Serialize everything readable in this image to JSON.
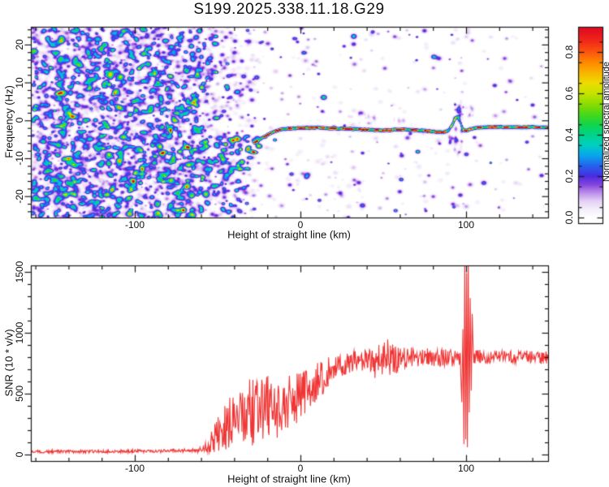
{
  "title": "S199.2025.338.11.18.G29",
  "chart_data": [
    {
      "type": "heatmap",
      "title": "S199.2025.338.11.18.G29",
      "xlabel": "Height of straight line (km)",
      "ylabel": "Frequency (Hz)",
      "x_range": [
        -163.2,
        149.5
      ],
      "y_range": [
        -25.6,
        24.7
      ],
      "x_major_ticks": [
        -100,
        0,
        100
      ],
      "x_tick_labels": [
        "-100",
        "0",
        "100"
      ],
      "x_minor_step": 20,
      "y_major_ticks": [
        20,
        10,
        0,
        -10,
        -20
      ],
      "y_tick_labels": [
        "20",
        "10",
        "0",
        "-10",
        "-20"
      ],
      "y_minor_step": 2,
      "description": "Doppler spectrogram: broadband violet speckle noise below -60 km, diagonal chirp streaks between -100 and -25 km converging onto a narrow carrier line near -2 Hz that runs to 150 km, with a vertical disturbance near 95-100 km.",
      "colorbar": {
        "label": "Normalized spectral amplitude",
        "ticks": [
          0.0,
          0.2,
          0.4,
          0.6,
          0.8
        ],
        "tick_labels": [
          "0.0",
          "0.2",
          "0.4",
          "0.6",
          "0.8"
        ],
        "minor_step": 0.05,
        "vmin": 0.0,
        "vmax": 0.92,
        "stops": [
          [
            0.0,
            "#ffffff"
          ],
          [
            0.04,
            "#f5eefb"
          ],
          [
            0.08,
            "#e3d0f5"
          ],
          [
            0.12,
            "#bc8cec"
          ],
          [
            0.16,
            "#8444de"
          ],
          [
            0.2,
            "#4a2ce2"
          ],
          [
            0.25,
            "#2562ec"
          ],
          [
            0.3,
            "#09a6ec"
          ],
          [
            0.35,
            "#00cfc2"
          ],
          [
            0.4,
            "#00d489"
          ],
          [
            0.45,
            "#12d44a"
          ],
          [
            0.5,
            "#4ad818"
          ],
          [
            0.55,
            "#8edc00"
          ],
          [
            0.6,
            "#c6e400"
          ],
          [
            0.65,
            "#eedc00"
          ],
          [
            0.7,
            "#f9b400"
          ],
          [
            0.75,
            "#ff8800"
          ],
          [
            0.8,
            "#fb5510"
          ],
          [
            0.85,
            "#f32a18"
          ],
          [
            0.9,
            "#e41020"
          ],
          [
            1.0,
            "#d00430"
          ]
        ]
      },
      "render": {
        "seed": 1337,
        "noise_attempts": 11000,
        "noise_density": [
          [
            -163,
            0.92
          ],
          [
            -78,
            0.92
          ],
          [
            -45,
            0.35
          ],
          [
            -20,
            0.06
          ],
          [
            150,
            0.035
          ]
        ],
        "streaks": [
          [
            -85,
            -9,
            -28,
            -4.5,
            30,
            0.15,
            0.34,
            0.28
          ],
          [
            -74,
            -13,
            -30,
            -7,
            20,
            0.13,
            0.3,
            0.22
          ],
          [
            -80,
            -2,
            -48,
            16,
            18,
            0.12,
            0.3,
            0.25
          ],
          [
            -92,
            -6,
            -60,
            7,
            15,
            0.1,
            0.26,
            0.15
          ],
          [
            -62,
            -16,
            -36,
            -3,
            13,
            0.12,
            0.3,
            0.2
          ],
          [
            -100,
            -14,
            -74,
            -2,
            12,
            0.1,
            0.24,
            0.1
          ],
          [
            -54,
            -20,
            -33,
            -9,
            10,
            0.1,
            0.28,
            0.18
          ],
          [
            -47,
            2,
            -30,
            10,
            8,
            0.08,
            0.2,
            0.1
          ],
          [
            -72,
            8,
            -54,
            17,
            8,
            0.1,
            0.24,
            0.12
          ],
          [
            -38,
            -13,
            -25,
            -7,
            8,
            0.15,
            0.35,
            0.3
          ],
          [
            -90,
            10,
            -72,
            20,
            7,
            0.08,
            0.2,
            0.1
          ],
          [
            -108,
            -20,
            -88,
            -10,
            8,
            0.08,
            0.2,
            0.08
          ]
        ],
        "line_path": [
          [
            -28.5,
            -5.8
          ],
          [
            -25,
            -5.0
          ],
          [
            -22,
            -4.2
          ],
          [
            -19,
            -3.4
          ],
          [
            -16,
            -2.9
          ],
          [
            -13,
            -2.4
          ],
          [
            -9,
            -2.1
          ],
          [
            -4,
            -2.0
          ],
          [
            2,
            -1.9
          ],
          [
            10,
            -1.8
          ],
          [
            18,
            -2.0
          ],
          [
            26,
            -2.1
          ],
          [
            34,
            -2.3
          ],
          [
            42,
            -2.4
          ],
          [
            50,
            -2.6
          ],
          [
            58,
            -2.3
          ],
          [
            66,
            -2.4
          ],
          [
            74,
            -2.6
          ],
          [
            80,
            -2.9
          ],
          [
            86,
            -3.1
          ],
          [
            89,
            -2.6
          ],
          [
            91,
            -1.4
          ],
          [
            93,
            0.4
          ],
          [
            94.5,
            1.2
          ],
          [
            95.8,
            0.3
          ],
          [
            96.8,
            -1.0
          ],
          [
            98,
            -2.3
          ],
          [
            100,
            -2.7
          ],
          [
            102,
            -2.2
          ],
          [
            105,
            -1.9
          ],
          [
            110,
            -1.7
          ],
          [
            118,
            -1.6
          ],
          [
            128,
            -1.7
          ],
          [
            140,
            -1.7
          ],
          [
            150,
            -1.8
          ]
        ],
        "smears": [
          [
            92.5,
            97.5,
            -9,
            5,
            26,
            0.05,
            0.16
          ],
          [
            88,
            94,
            -6.5,
            -4,
            8,
            0.07,
            0.16
          ],
          [
            96,
            104,
            1,
            4,
            10,
            0.04,
            0.1
          ],
          [
            28,
            46,
            -0.8,
            1.8,
            10,
            0.04,
            0.09
          ],
          [
            55,
            70,
            -1,
            0.5,
            6,
            0.03,
            0.07
          ]
        ]
      }
    },
    {
      "type": "line",
      "xlabel": "Height of straight line (km)",
      "ylabel": "SNR (10 * v/v)",
      "x_range": [
        -163.2,
        149.5
      ],
      "y_range": [
        -50,
        1555
      ],
      "x_major_ticks": [
        -100,
        0,
        100
      ],
      "x_tick_labels": [
        "-100",
        "0",
        "100"
      ],
      "x_minor_step": 20,
      "y_major_ticks": [
        0,
        500,
        1000,
        1500
      ],
      "y_tick_labels": [
        "0",
        "500",
        "1000",
        "1500"
      ],
      "y_minor_step": 100,
      "line_color": "#f03535",
      "seed": 4242,
      "description": "SNR trace: near zero until -60 km, bursty rise between -55 and 0 km, noisy plateau near 800 from 20 km onward, sharp spike cluster reaching ~1550 near 100 km.",
      "anchors": [
        [
          -163,
          22,
          13
        ],
        [
          -148,
          24,
          13
        ],
        [
          -134,
          24,
          13
        ],
        [
          -120,
          26,
          13
        ],
        [
          -106,
          27,
          14
        ],
        [
          -92,
          28,
          14
        ],
        [
          -80,
          30,
          15
        ],
        [
          -72,
          32,
          16
        ],
        [
          -66,
          34,
          18
        ],
        [
          -62,
          40,
          24
        ],
        [
          -58,
          55,
          40
        ],
        [
          -55,
          85,
          70
        ],
        [
          -52,
          135,
          115
        ],
        [
          -50,
          185,
          155
        ],
        [
          -48,
          155,
          135
        ],
        [
          -46,
          235,
          195
        ],
        [
          -44,
          215,
          185
        ],
        [
          -42,
          295,
          235
        ],
        [
          -40,
          265,
          215
        ],
        [
          -38,
          325,
          255
        ],
        [
          -36,
          295,
          235
        ],
        [
          -34,
          355,
          275
        ],
        [
          -32,
          315,
          255
        ],
        [
          -30,
          365,
          285
        ],
        [
          -28,
          335,
          265
        ],
        [
          -26,
          395,
          295
        ],
        [
          -24,
          365,
          275
        ],
        [
          -22,
          425,
          305
        ],
        [
          -20,
          385,
          285
        ],
        [
          -18,
          345,
          255
        ],
        [
          -16,
          385,
          245
        ],
        [
          -14,
          355,
          235
        ],
        [
          -12,
          405,
          235
        ],
        [
          -10,
          375,
          225
        ],
        [
          -8,
          425,
          225
        ],
        [
          -6,
          455,
          215
        ],
        [
          -4,
          425,
          205
        ],
        [
          -2,
          465,
          205
        ],
        [
          0,
          485,
          195
        ],
        [
          3,
          525,
          185
        ],
        [
          6,
          555,
          175
        ],
        [
          9,
          585,
          165
        ],
        [
          12,
          615,
          155
        ],
        [
          15,
          645,
          145
        ],
        [
          18,
          675,
          130
        ],
        [
          21,
          705,
          115
        ],
        [
          24,
          725,
          105
        ],
        [
          27,
          745,
          95
        ],
        [
          30,
          755,
          88
        ],
        [
          33,
          765,
          92
        ],
        [
          36,
          775,
          105
        ],
        [
          39,
          765,
          92
        ],
        [
          42,
          775,
          112
        ],
        [
          45,
          755,
          132
        ],
        [
          48,
          795,
          162
        ],
        [
          51,
          815,
          172
        ],
        [
          54,
          785,
          152
        ],
        [
          57,
          775,
          122
        ],
        [
          60,
          785,
          96
        ],
        [
          64,
          795,
          82
        ],
        [
          68,
          805,
          76
        ],
        [
          72,
          795,
          72
        ],
        [
          76,
          805,
          70
        ],
        [
          80,
          798,
          70
        ],
        [
          84,
          792,
          73
        ],
        [
          88,
          802,
          76
        ],
        [
          92,
          782,
          82
        ],
        [
          95,
          762,
          86
        ],
        [
          96.5,
          820,
          58
        ],
        [
          97.4,
          430,
          0
        ],
        [
          98.1,
          1030,
          0
        ],
        [
          98.7,
          85,
          0
        ],
        [
          99.2,
          1600,
          0
        ],
        [
          99.8,
          125,
          0
        ],
        [
          100.3,
          1490,
          0
        ],
        [
          100.8,
          60,
          0
        ],
        [
          101.3,
          1580,
          0
        ],
        [
          101.9,
          345,
          0
        ],
        [
          102.5,
          1285,
          0
        ],
        [
          103.1,
          525,
          0
        ],
        [
          103.7,
          1155,
          0
        ],
        [
          104.4,
          785,
          45
        ],
        [
          106,
          800,
          58
        ],
        [
          110,
          806,
          56
        ],
        [
          115,
          796,
          55
        ],
        [
          120,
          806,
          53
        ],
        [
          126,
          800,
          53
        ],
        [
          132,
          795,
          53
        ],
        [
          138,
          805,
          53
        ],
        [
          144,
          798,
          53
        ],
        [
          149.5,
          792,
          53
        ]
      ]
    }
  ]
}
